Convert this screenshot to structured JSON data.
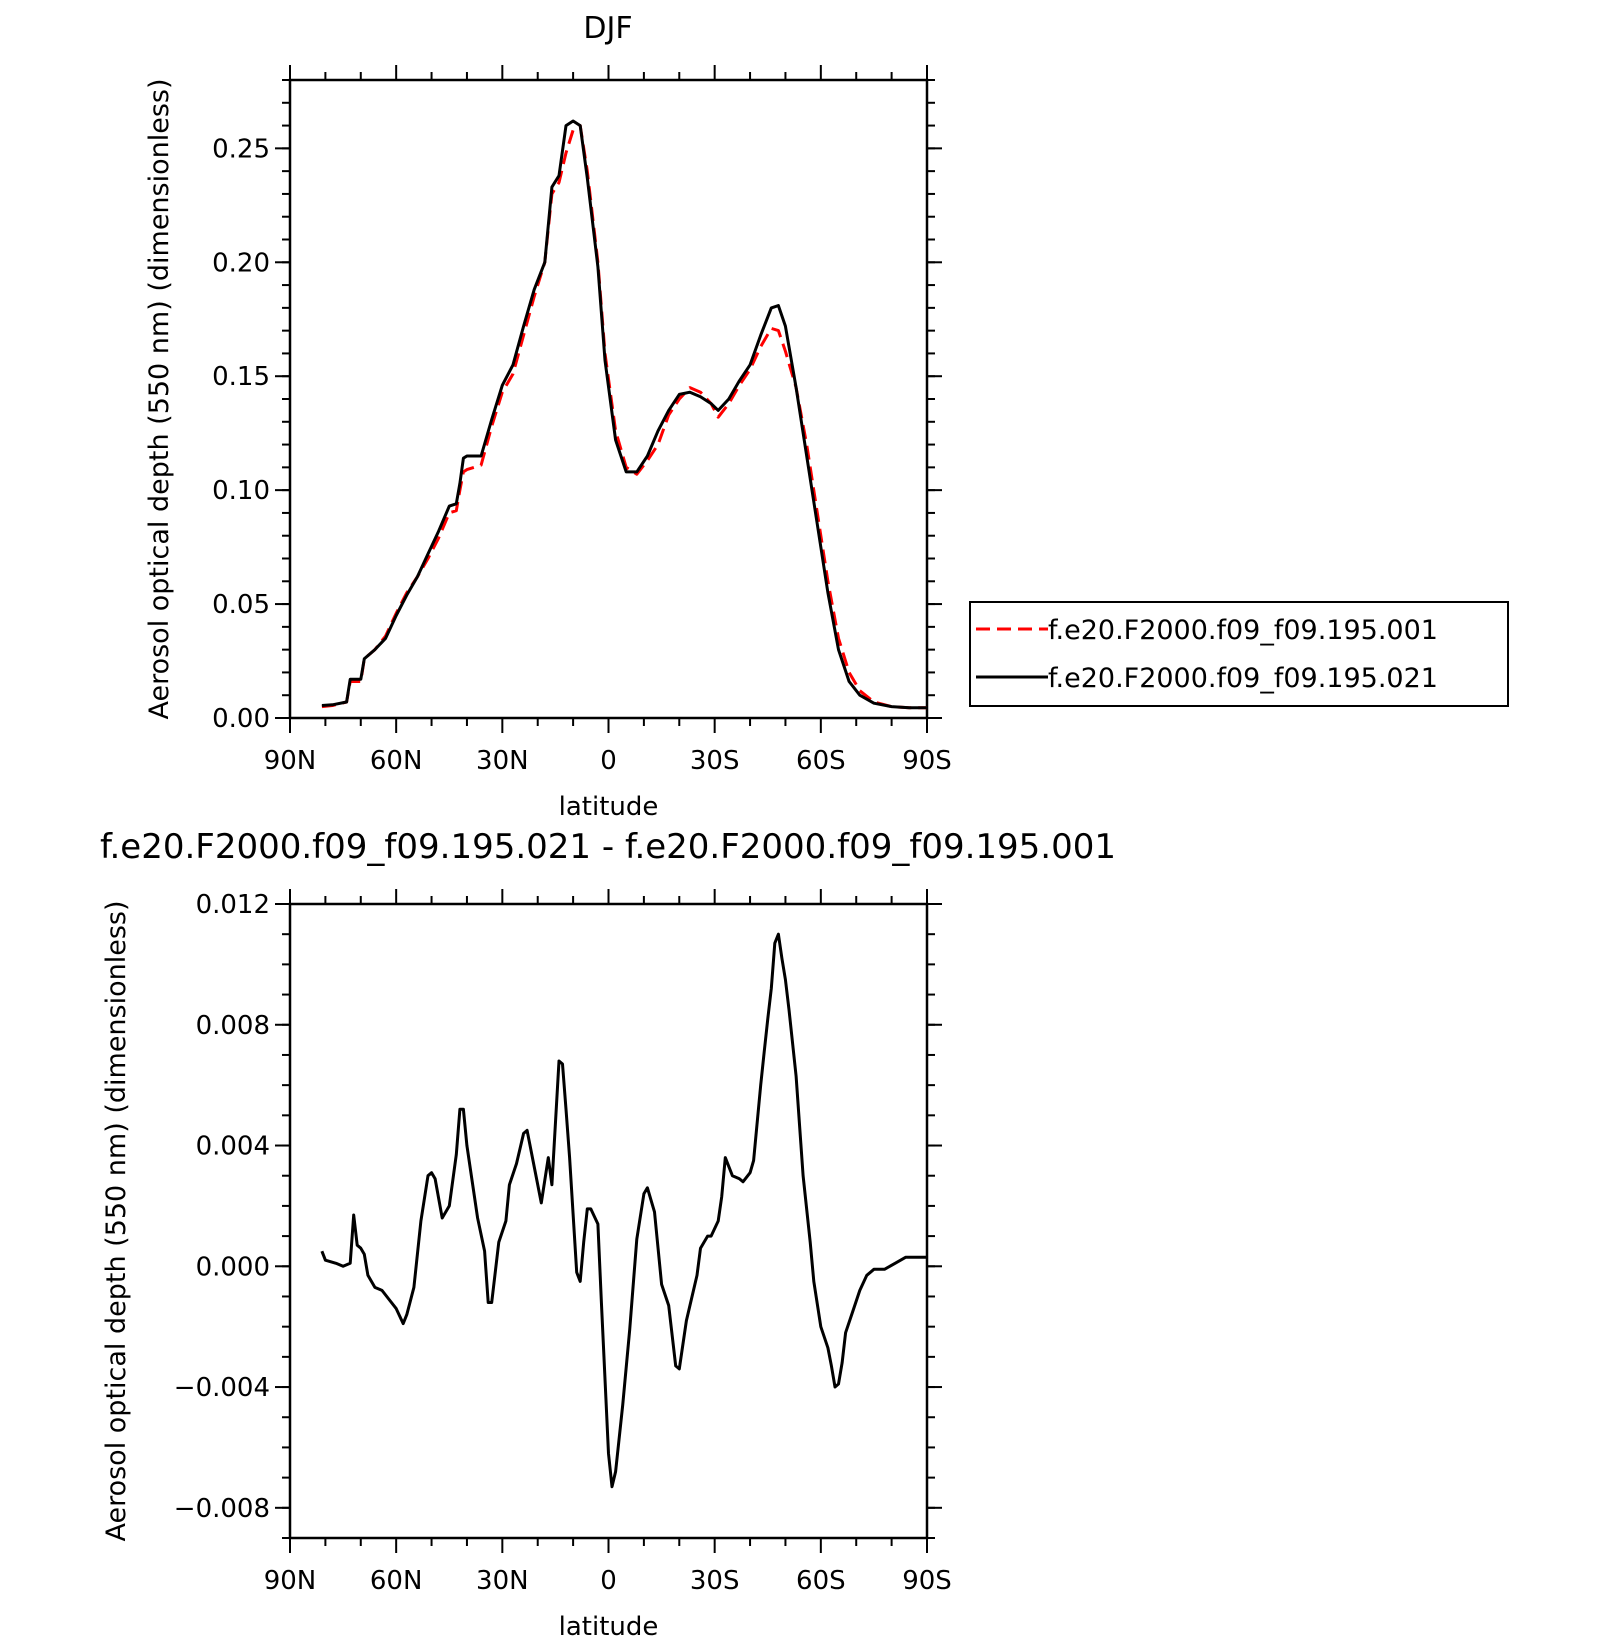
{
  "chart_data": [
    {
      "type": "line",
      "title": "DJF",
      "xlabel": "latitude",
      "ylabel": "Aerosol optical depth (550 nm) (dimensionless)",
      "x_tick_labels": [
        "90N",
        "60N",
        "30N",
        "0",
        "30S",
        "60S",
        "90S"
      ],
      "y_tick_labels": [
        "0.00",
        "0.05",
        "0.10",
        "0.15",
        "0.20",
        "0.25"
      ],
      "xlim": [
        90,
        -90
      ],
      "ylim": [
        0,
        0.28
      ],
      "legend_position": "right",
      "series": [
        {
          "name": "f.e20.F2000.f09_f09.195.001",
          "color": "#ff0000",
          "dash": "dashed",
          "points": [
            [
              81,
              0.005
            ],
            [
              78,
              0.0055
            ],
            [
              74,
              0.007
            ],
            [
              73,
              0.016
            ],
            [
              70,
              0.016
            ],
            [
              69,
              0.026
            ],
            [
              66,
              0.03
            ],
            [
              63,
              0.036
            ],
            [
              60,
              0.046
            ],
            [
              57,
              0.055
            ],
            [
              54,
              0.062
            ],
            [
              51,
              0.07
            ],
            [
              48,
              0.079
            ],
            [
              45,
              0.09
            ],
            [
              43,
              0.091
            ],
            [
              42,
              0.1
            ],
            [
              41,
              0.108
            ],
            [
              40,
              0.109
            ],
            [
              36,
              0.111
            ],
            [
              33,
              0.128
            ],
            [
              30,
              0.143
            ],
            [
              27,
              0.151
            ],
            [
              24,
              0.168
            ],
            [
              21,
              0.185
            ],
            [
              18,
              0.2
            ],
            [
              16,
              0.23
            ],
            [
              14,
              0.235
            ],
            [
              12,
              0.248
            ],
            [
              10,
              0.258
            ],
            [
              8,
              0.26
            ],
            [
              6,
              0.24
            ],
            [
              3,
              0.2
            ],
            [
              1,
              0.16
            ],
            [
              -2,
              0.126
            ],
            [
              -5,
              0.11
            ],
            [
              -8,
              0.107
            ],
            [
              -11,
              0.113
            ],
            [
              -14,
              0.12
            ],
            [
              -17,
              0.133
            ],
            [
              -20,
              0.14
            ],
            [
              -23,
              0.145
            ],
            [
              -26,
              0.143
            ],
            [
              -29,
              0.138
            ],
            [
              -31,
              0.132
            ],
            [
              -34,
              0.138
            ],
            [
              -37,
              0.146
            ],
            [
              -40,
              0.153
            ],
            [
              -43,
              0.163
            ],
            [
              -46,
              0.171
            ],
            [
              -48,
              0.17
            ],
            [
              -50,
              0.161
            ],
            [
              -53,
              0.145
            ],
            [
              -56,
              0.12
            ],
            [
              -59,
              0.09
            ],
            [
              -62,
              0.06
            ],
            [
              -65,
              0.035
            ],
            [
              -68,
              0.02
            ],
            [
              -71,
              0.012
            ],
            [
              -75,
              0.007
            ],
            [
              -80,
              0.005
            ],
            [
              -85,
              0.0045
            ],
            [
              -90,
              0.0045
            ]
          ]
        },
        {
          "name": "f.e20.F2000.f09_f09.195.021",
          "color": "#000000",
          "dash": "solid",
          "points": [
            [
              81,
              0.0055
            ],
            [
              78,
              0.0058
            ],
            [
              74,
              0.007
            ],
            [
              73,
              0.017
            ],
            [
              70,
              0.017
            ],
            [
              69,
              0.026
            ],
            [
              66,
              0.03
            ],
            [
              63,
              0.035
            ],
            [
              60,
              0.045
            ],
            [
              57,
              0.054
            ],
            [
              54,
              0.062
            ],
            [
              51,
              0.072
            ],
            [
              48,
              0.082
            ],
            [
              45,
              0.093
            ],
            [
              43,
              0.094
            ],
            [
              42,
              0.103
            ],
            [
              41,
              0.114
            ],
            [
              40,
              0.115
            ],
            [
              36,
              0.115
            ],
            [
              33,
              0.131
            ],
            [
              30,
              0.146
            ],
            [
              27,
              0.155
            ],
            [
              24,
              0.172
            ],
            [
              21,
              0.188
            ],
            [
              18,
              0.2
            ],
            [
              16,
              0.233
            ],
            [
              14,
              0.238
            ],
            [
              12,
              0.26
            ],
            [
              10,
              0.262
            ],
            [
              8,
              0.26
            ],
            [
              6,
              0.237
            ],
            [
              3,
              0.198
            ],
            [
              1,
              0.157
            ],
            [
              -2,
              0.122
            ],
            [
              -5,
              0.108
            ],
            [
              -8,
              0.108
            ],
            [
              -11,
              0.115
            ],
            [
              -14,
              0.126
            ],
            [
              -17,
              0.135
            ],
            [
              -20,
              0.142
            ],
            [
              -23,
              0.143
            ],
            [
              -26,
              0.141
            ],
            [
              -29,
              0.138
            ],
            [
              -31,
              0.135
            ],
            [
              -34,
              0.14
            ],
            [
              -37,
              0.148
            ],
            [
              -40,
              0.155
            ],
            [
              -43,
              0.168
            ],
            [
              -46,
              0.18
            ],
            [
              -48,
              0.181
            ],
            [
              -50,
              0.172
            ],
            [
              -53,
              0.145
            ],
            [
              -56,
              0.115
            ],
            [
              -59,
              0.085
            ],
            [
              -62,
              0.055
            ],
            [
              -65,
              0.03
            ],
            [
              -68,
              0.016
            ],
            [
              -71,
              0.01
            ],
            [
              -75,
              0.0065
            ],
            [
              -80,
              0.005
            ],
            [
              -85,
              0.0045
            ],
            [
              -90,
              0.0045
            ]
          ]
        }
      ]
    },
    {
      "type": "line",
      "title": "f.e20.F2000.f09_f09.195.021 - f.e20.F2000.f09_f09.195.001",
      "xlabel": "latitude",
      "ylabel": "Aerosol optical depth (550 nm) (dimensionless)",
      "x_tick_labels": [
        "90N",
        "60N",
        "30N",
        "0",
        "30S",
        "60S",
        "90S"
      ],
      "y_tick_labels": [
        "0.012",
        "0.008",
        "0.004",
        "0.000",
        "−0.004",
        "−0.008"
      ],
      "xlim": [
        90,
        -90
      ],
      "ylim": [
        -0.009,
        0.012
      ],
      "series": [
        {
          "color": "#000000",
          "dash": "solid",
          "points": [
            [
              81,
              0.0005
            ],
            [
              80,
              0.0002
            ],
            [
              77,
              0.0001
            ],
            [
              75,
              0
            ],
            [
              73,
              0.0001
            ],
            [
              72,
              0.0017
            ],
            [
              71,
              0.0007
            ],
            [
              70,
              0.0006
            ],
            [
              69,
              0.0004
            ],
            [
              68,
              -0.0003
            ],
            [
              66,
              -0.0007
            ],
            [
              64,
              -0.0008
            ],
            [
              62,
              -0.0011
            ],
            [
              60,
              -0.0014
            ],
            [
              58,
              -0.0019
            ],
            [
              57,
              -0.0016
            ],
            [
              55,
              -0.0007
            ],
            [
              53,
              0.0015
            ],
            [
              51,
              0.003
            ],
            [
              50,
              0.0031
            ],
            [
              49,
              0.0029
            ],
            [
              47,
              0.0016
            ],
            [
              45,
              0.002
            ],
            [
              43,
              0.0037
            ],
            [
              42,
              0.0052
            ],
            [
              41,
              0.0052
            ],
            [
              40,
              0.004
            ],
            [
              37,
              0.0016
            ],
            [
              35,
              0.0005
            ],
            [
              34,
              -0.0012
            ],
            [
              33,
              -0.0012
            ],
            [
              31,
              0.0008
            ],
            [
              29,
              0.0015
            ],
            [
              28,
              0.0027
            ],
            [
              26,
              0.0034
            ],
            [
              24,
              0.0044
            ],
            [
              23,
              0.0045
            ],
            [
              21,
              0.0033
            ],
            [
              19,
              0.0021
            ],
            [
              17,
              0.0036
            ],
            [
              16,
              0.0027
            ],
            [
              14,
              0.0068
            ],
            [
              13,
              0.0067
            ],
            [
              12,
              0.0052
            ],
            [
              11,
              0.0036
            ],
            [
              9,
              -0.0002
            ],
            [
              8,
              -0.0005
            ],
            [
              7,
              0.0008
            ],
            [
              6,
              0.0019
            ],
            [
              5,
              0.0019
            ],
            [
              3,
              0.0014
            ],
            [
              2,
              -0.0012
            ],
            [
              0,
              -0.0062
            ],
            [
              -1,
              -0.0073
            ],
            [
              -2,
              -0.0068
            ],
            [
              -4,
              -0.0046
            ],
            [
              -6,
              -0.0021
            ],
            [
              -8,
              0.0009
            ],
            [
              -10,
              0.0024
            ],
            [
              -11,
              0.0026
            ],
            [
              -13,
              0.0018
            ],
            [
              -15,
              -0.0006
            ],
            [
              -17,
              -0.0013
            ],
            [
              -19,
              -0.0033
            ],
            [
              -20,
              -0.0034
            ],
            [
              -22,
              -0.0018
            ],
            [
              -25,
              -0.0003
            ],
            [
              -26,
              0.0006
            ],
            [
              -28,
              0.001
            ],
            [
              -29,
              0.001
            ],
            [
              -31,
              0.0015
            ],
            [
              -32,
              0.0023
            ],
            [
              -33,
              0.0036
            ],
            [
              -35,
              0.003
            ],
            [
              -37,
              0.0029
            ],
            [
              -38,
              0.0028
            ],
            [
              -40,
              0.0031
            ],
            [
              -41,
              0.0035
            ],
            [
              -43,
              0.006
            ],
            [
              -44,
              0.0071
            ],
            [
              -45,
              0.0082
            ],
            [
              -46,
              0.0092
            ],
            [
              -47,
              0.0107
            ],
            [
              -48,
              0.011
            ],
            [
              -49,
              0.0102
            ],
            [
              -50,
              0.0095
            ],
            [
              -51,
              0.0085
            ],
            [
              -53,
              0.0063
            ],
            [
              -55,
              0.003
            ],
            [
              -57,
              0.0008
            ],
            [
              -58,
              -0.0005
            ],
            [
              -60,
              -0.002
            ],
            [
              -62,
              -0.0027
            ],
            [
              -63,
              -0.0033
            ],
            [
              -64,
              -0.004
            ],
            [
              -65,
              -0.0039
            ],
            [
              -66,
              -0.0032
            ],
            [
              -67,
              -0.0022
            ],
            [
              -69,
              -0.0015
            ],
            [
              -71,
              -0.0008
            ],
            [
              -73,
              -0.0003
            ],
            [
              -75,
              -0.0001
            ],
            [
              -78,
              -0.0001
            ],
            [
              -81,
              0.0001
            ],
            [
              -84,
              0.0003
            ],
            [
              -87,
              0.0003
            ],
            [
              -90,
              0.0003
            ]
          ]
        }
      ]
    }
  ]
}
